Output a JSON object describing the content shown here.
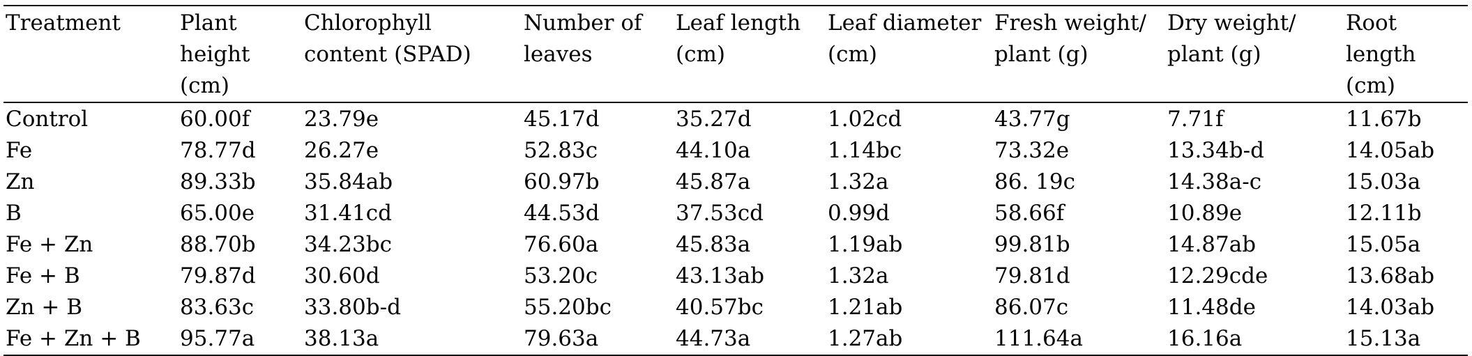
{
  "table": {
    "headers": [
      "Treatment",
      "Plant height (cm)",
      "Chlorophyll content (SPAD)",
      "Number of leaves",
      "Leaf length (cm)",
      "Leaf diameter (cm)",
      "Fresh weight/ plant (g)",
      "Dry weight/ plant (g)",
      "Root length (cm)"
    ],
    "rows": [
      [
        "Control",
        "60.00f",
        "23.79e",
        "45.17d",
        "35.27d",
        "1.02cd",
        "43.77g",
        "7.71f",
        "11.67b"
      ],
      [
        "Fe",
        "78.77d",
        "26.27e",
        "52.83c",
        "44.10a",
        "1.14bc",
        "73.32e",
        "13.34b-d",
        "14.05ab"
      ],
      [
        "Zn",
        "89.33b",
        "35.84ab",
        "60.97b",
        "45.87a",
        "1.32a",
        "86. 19c",
        "14.38a-c",
        "15.03a"
      ],
      [
        "B",
        "65.00e",
        "31.41cd",
        "44.53d",
        "37.53cd",
        "0.99d",
        "58.66f",
        "10.89e",
        "12.11b"
      ],
      [
        "Fe + Zn",
        "88.70b",
        "34.23bc",
        "76.60a",
        "45.83a",
        "1.19ab",
        "99.81b",
        "14.87ab",
        "15.05a"
      ],
      [
        "Fe + B",
        "79.87d",
        "30.60d",
        "53.20c",
        "43.13ab",
        "1.32a",
        "79.81d",
        "12.29cde",
        "13.68ab"
      ],
      [
        "Zn + B",
        "83.63c",
        "33.80b-d",
        "55.20bc",
        "40.57bc",
        "1.21ab",
        "86.07c",
        "11.48de",
        "14.03ab"
      ],
      [
        "Fe + Zn + B",
        "95.77a",
        "38.13a",
        "79.63a",
        "44.73a",
        "1.27ab",
        "111.64a",
        "16.16a",
        "15.13a"
      ]
    ]
  }
}
